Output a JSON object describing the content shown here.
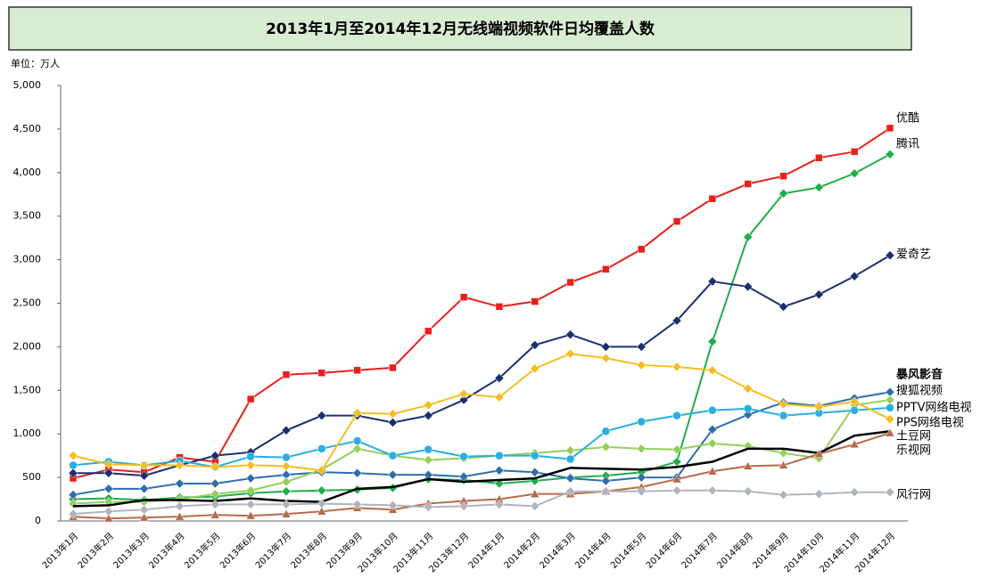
{
  "chart_data": {
    "type": "line",
    "title": "2013年1月至2014年12月无线端视频软件日均覆盖人数",
    "unit_label": "单位：万人",
    "categories": [
      "2013年1月",
      "2013年2月",
      "2013年3月",
      "2013年4月",
      "2013年5月",
      "2013年6月",
      "2013年7月",
      "2013年8月",
      "2013年9月",
      "2013年10月",
      "2013年11月",
      "2013年12月",
      "2014年1月",
      "2014年2月",
      "2014年3月",
      "2014年4月",
      "2014年5月",
      "2014年6月",
      "2014年7月",
      "2014年8月",
      "2014年9月",
      "2014年10月",
      "2014年11月",
      "2014年12月"
    ],
    "ylim": [
      0,
      5000
    ],
    "yticks": [
      0,
      500,
      {
        "value": 1000,
        "label": "1,000"
      },
      {
        "value": 1500,
        "label": "1,500"
      },
      {
        "value": 2000,
        "label": "2,000"
      },
      {
        "value": 2500,
        "label": "2,500"
      },
      {
        "value": 3000,
        "label": "3,000"
      },
      {
        "value": 3500,
        "label": "3,500"
      },
      {
        "value": 4000,
        "label": "4,000"
      },
      {
        "value": 4500,
        "label": "4,500"
      },
      {
        "value": 5000,
        "label": "5,000"
      }
    ],
    "grid": false,
    "series": [
      {
        "name": "优酷",
        "color": "#e8201c",
        "marker": "square",
        "values": [
          490,
          590,
          560,
          730,
          680,
          1400,
          1680,
          1700,
          1730,
          1760,
          2180,
          2570,
          2460,
          2520,
          2740,
          2890,
          3120,
          3440,
          3700,
          3870,
          3960,
          4170,
          4240,
          4510
        ]
      },
      {
        "name": "腾讯",
        "color": "#1fae4a",
        "marker": "diamond",
        "values": [
          250,
          260,
          240,
          270,
          280,
          320,
          340,
          350,
          360,
          380,
          480,
          470,
          430,
          460,
          500,
          520,
          560,
          680,
          2060,
          3260,
          3760,
          3830,
          3990,
          4210
        ]
      },
      {
        "name": "爱奇艺",
        "color": "#1a2f6e",
        "marker": "diamond",
        "values": [
          550,
          550,
          520,
          640,
          750,
          790,
          1040,
          1210,
          1210,
          1130,
          1210,
          1390,
          1640,
          2020,
          2140,
          2000,
          2000,
          2300,
          2750,
          2690,
          2460,
          2600,
          2810,
          3050
        ]
      },
      {
        "name": "暴风影音",
        "color": "#2e6ead",
        "marker": "diamond",
        "values": [
          300,
          370,
          370,
          430,
          430,
          490,
          530,
          560,
          550,
          530,
          530,
          510,
          580,
          560,
          490,
          460,
          500,
          500,
          1050,
          1220,
          1360,
          1320,
          1410,
          1480
        ]
      },
      {
        "name": "搜狐视频",
        "color": "#94cf5a",
        "marker": "diamond",
        "values": [
          200,
          220,
          220,
          250,
          310,
          350,
          450,
          590,
          830,
          750,
          700,
          720,
          750,
          780,
          810,
          850,
          830,
          820,
          890,
          860,
          780,
          720,
          1330,
          1390
        ]
      },
      {
        "name": "PPTV网络电视",
        "color": "#2aaee0",
        "marker": "circle",
        "values": [
          640,
          680,
          640,
          690,
          620,
          740,
          730,
          830,
          920,
          750,
          820,
          740,
          750,
          750,
          710,
          1030,
          1140,
          1210,
          1270,
          1290,
          1210,
          1240,
          1270,
          1300
        ]
      },
      {
        "name": "PPS网络电视",
        "color": "#f6bd20",
        "marker": "diamond",
        "values": [
          750,
          650,
          640,
          640,
          620,
          640,
          630,
          580,
          1240,
          1230,
          1330,
          1460,
          1420,
          1750,
          1920,
          1870,
          1790,
          1770,
          1730,
          1520,
          1340,
          1310,
          1370,
          1170
        ]
      },
      {
        "name": "土豆网",
        "color": "#000000",
        "marker": "none",
        "values": [
          170,
          180,
          240,
          240,
          230,
          260,
          230,
          220,
          370,
          390,
          480,
          450,
          470,
          490,
          610,
          600,
          590,
          620,
          680,
          830,
          830,
          780,
          980,
          1030
        ]
      },
      {
        "name": "乐视网",
        "color": "#b56a4a",
        "marker": "triangle",
        "values": [
          50,
          30,
          40,
          50,
          70,
          60,
          80,
          110,
          150,
          130,
          200,
          230,
          250,
          310,
          310,
          340,
          390,
          480,
          570,
          630,
          640,
          770,
          880,
          1010
        ]
      },
      {
        "name": "风行网",
        "color": "#b0b4be",
        "marker": "diamond",
        "values": [
          80,
          110,
          130,
          170,
          190,
          190,
          190,
          200,
          190,
          180,
          160,
          170,
          190,
          170,
          340,
          340,
          340,
          350,
          350,
          340,
          300,
          310,
          330,
          330
        ]
      }
    ]
  }
}
